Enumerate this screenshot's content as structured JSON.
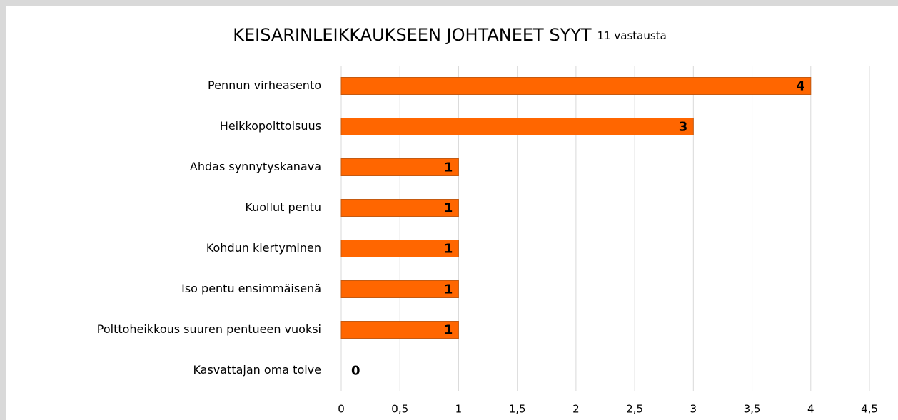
{
  "chart_data": {
    "type": "barh",
    "title": "KEISARINLEIKKAUKSEEN JOHTANEET SYYT",
    "subtitle": "11 vastausta",
    "categories": [
      "Pennun virheasento",
      "Heikkopolttoisuus",
      "Ahdas synnytyskanava",
      "Kuollut pentu",
      "Kohdun kiertyminen",
      "Iso pentu ensimmäisenä",
      "Polttoheikkous suuren pentueen vuoksi",
      "Kasvattajan oma toive"
    ],
    "values": [
      4,
      3,
      1,
      1,
      1,
      1,
      1,
      0
    ],
    "color": "#ff6600",
    "xlim": [
      0,
      4.5
    ],
    "xticks": [
      0,
      {
        "value": 0.5,
        "label": "0,5"
      },
      1,
      {
        "value": 1.5,
        "label": "1,5"
      },
      2,
      {
        "value": 2.5,
        "label": "2,5"
      },
      3,
      {
        "value": 3.5,
        "label": "3,5"
      },
      4,
      {
        "value": 4.5,
        "label": "4,5"
      }
    ],
    "grid": true
  }
}
